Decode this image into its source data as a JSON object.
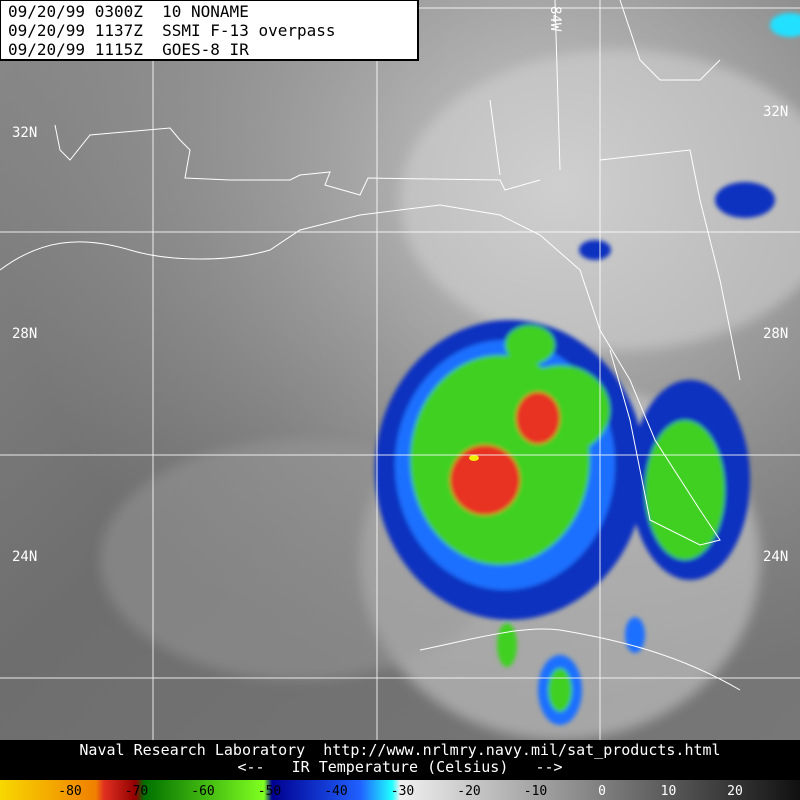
{
  "header": {
    "lines": [
      "09/20/99 0300Z  10 NONAME",
      "09/20/99 1137Z  SSMI F-13 overpass",
      "09/20/99 1115Z  GOES-8 IR"
    ]
  },
  "map": {
    "latitude_labels": [
      "32N",
      "28N",
      "24N"
    ],
    "longitude_label": "84W"
  },
  "footer": {
    "credit": "Naval Research Laboratory  http://www.nrlmry.navy.mil/sat_products.html",
    "scale_title": "<--   IR Temperature (Celsius)   -->"
  },
  "colorbar": {
    "labels": [
      -80,
      -70,
      -60,
      -50,
      -40,
      -30,
      -20,
      -10,
      0,
      10,
      20
    ]
  }
}
